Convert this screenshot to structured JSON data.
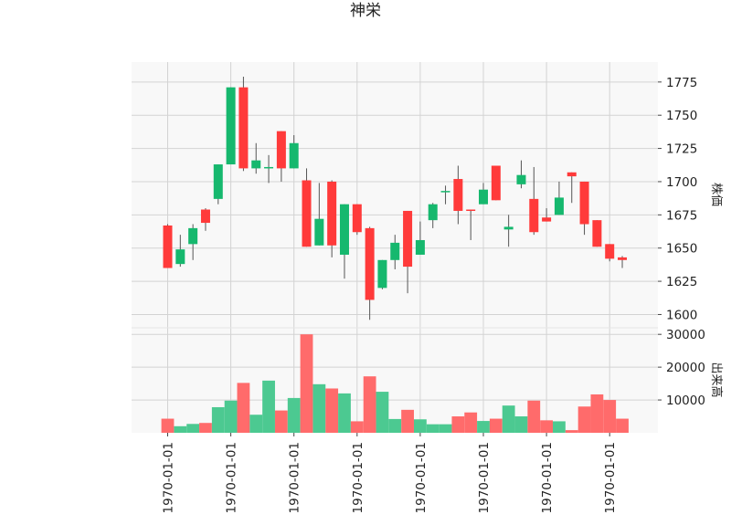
{
  "chart_data": {
    "type": "candlestick",
    "title": "神栄",
    "ylabel_price": "株価",
    "ylabel_volume": "出来高",
    "price_ylim": [
      1590,
      1790
    ],
    "price_ticks": [
      1600,
      1625,
      1650,
      1675,
      1700,
      1725,
      1750,
      1775
    ],
    "volume_ylim": [
      0,
      32000
    ],
    "volume_ticks": [
      10000,
      20000,
      30000
    ],
    "x_tick_label": "1970-01-01",
    "x_tick_positions": [
      0,
      5,
      10,
      15,
      20,
      25,
      30,
      35
    ],
    "grid": true,
    "colors": {
      "up": "#16b86e",
      "down": "#ff3a3a",
      "up_volume": "#4cc991",
      "down_volume": "#ff6b6b",
      "panel_bg": "#f8f8f8",
      "grid": "#d3d3d3"
    },
    "candles": [
      {
        "o": 1667,
        "h": 1668,
        "l": 1635,
        "c": 1635,
        "v": 4300
      },
      {
        "o": 1638,
        "h": 1660,
        "l": 1636,
        "c": 1649,
        "v": 2000
      },
      {
        "o": 1653,
        "h": 1668,
        "l": 1641,
        "c": 1665,
        "v": 2700
      },
      {
        "o": 1679,
        "h": 1680,
        "l": 1663,
        "c": 1669,
        "v": 3000
      },
      {
        "o": 1687,
        "h": 1713,
        "l": 1683,
        "c": 1713,
        "v": 7800
      },
      {
        "o": 1713,
        "h": 1771,
        "l": 1713,
        "c": 1771,
        "v": 9800
      },
      {
        "o": 1771,
        "h": 1779,
        "l": 1708,
        "c": 1710,
        "v": 15200
      },
      {
        "o": 1710,
        "h": 1729,
        "l": 1706,
        "c": 1716,
        "v": 5500
      },
      {
        "o": 1710,
        "h": 1720,
        "l": 1699,
        "c": 1711,
        "v": 15900
      },
      {
        "o": 1738,
        "h": 1738,
        "l": 1700,
        "c": 1710,
        "v": 6800
      },
      {
        "o": 1710,
        "h": 1735,
        "l": 1710,
        "c": 1729,
        "v": 10600
      },
      {
        "o": 1701,
        "h": 1710,
        "l": 1651,
        "c": 1651,
        "v": 30000
      },
      {
        "o": 1652,
        "h": 1699,
        "l": 1652,
        "c": 1672,
        "v": 14800
      },
      {
        "o": 1700,
        "h": 1701,
        "l": 1643,
        "c": 1652,
        "v": 13500
      },
      {
        "o": 1645,
        "h": 1683,
        "l": 1627,
        "c": 1683,
        "v": 12000
      },
      {
        "o": 1683,
        "h": 1683,
        "l": 1660,
        "c": 1662,
        "v": 3500
      },
      {
        "o": 1665,
        "h": 1666,
        "l": 1596,
        "c": 1611,
        "v": 17200
      },
      {
        "o": 1620,
        "h": 1641,
        "l": 1619,
        "c": 1641,
        "v": 12500
      },
      {
        "o": 1641,
        "h": 1660,
        "l": 1634,
        "c": 1654,
        "v": 4200
      },
      {
        "o": 1678,
        "h": 1678,
        "l": 1616,
        "c": 1636,
        "v": 7000
      },
      {
        "o": 1645,
        "h": 1670,
        "l": 1645,
        "c": 1656,
        "v": 4100
      },
      {
        "o": 1671,
        "h": 1684,
        "l": 1665,
        "c": 1683,
        "v": 2600
      },
      {
        "o": 1692,
        "h": 1697,
        "l": 1683,
        "c": 1693,
        "v": 2600
      },
      {
        "o": 1702,
        "h": 1712,
        "l": 1668,
        "c": 1678,
        "v": 5000
      },
      {
        "o": 1679,
        "h": 1679,
        "l": 1656,
        "c": 1678,
        "v": 6200
      },
      {
        "o": 1683,
        "h": 1699,
        "l": 1683,
        "c": 1694,
        "v": 3600
      },
      {
        "o": 1712,
        "h": 1712,
        "l": 1686,
        "c": 1686,
        "v": 4300
      },
      {
        "o": 1664,
        "h": 1675,
        "l": 1651,
        "c": 1666,
        "v": 8300
      },
      {
        "o": 1698,
        "h": 1716,
        "l": 1695,
        "c": 1705,
        "v": 5000
      },
      {
        "o": 1687,
        "h": 1711,
        "l": 1660,
        "c": 1662,
        "v": 9800
      },
      {
        "o": 1673,
        "h": 1680,
        "l": 1670,
        "c": 1670,
        "v": 3800
      },
      {
        "o": 1675,
        "h": 1700,
        "l": 1675,
        "c": 1688,
        "v": 3500
      },
      {
        "o": 1707,
        "h": 1707,
        "l": 1684,
        "c": 1704,
        "v": 800
      },
      {
        "o": 1700,
        "h": 1700,
        "l": 1660,
        "c": 1668,
        "v": 8000
      },
      {
        "o": 1671,
        "h": 1671,
        "l": 1651,
        "c": 1651,
        "v": 11700
      },
      {
        "o": 1653,
        "h": 1653,
        "l": 1640,
        "c": 1642,
        "v": 10000
      },
      {
        "o": 1643,
        "h": 1644,
        "l": 1635,
        "c": 1641,
        "v": 4300
      }
    ]
  }
}
